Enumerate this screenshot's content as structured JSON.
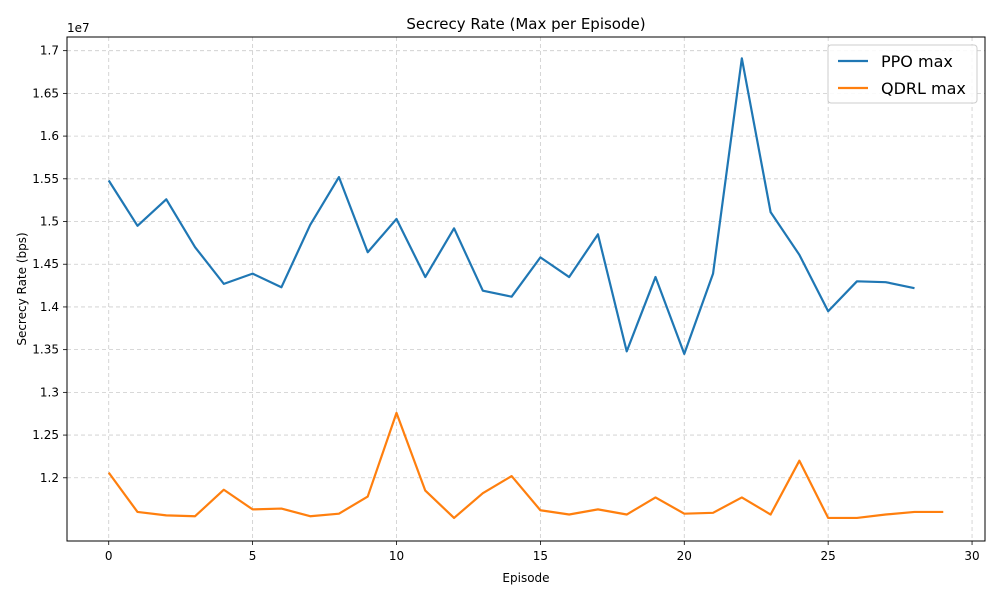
{
  "chart_data": {
    "type": "line",
    "title": "Secrecy Rate (Max per Episode)",
    "xlabel": "Episode",
    "ylabel": "Secrecy Rate (bps)",
    "y_offset_label": "1e7",
    "xlim": [
      -1.45,
      30.45
    ],
    "ylim": [
      11260000,
      17160000
    ],
    "x_ticks": [
      0,
      5,
      10,
      15,
      20,
      25,
      30
    ],
    "y_ticks": [
      12000000,
      12500000,
      13000000,
      13500000,
      14000000,
      14500000,
      15000000,
      15500000,
      16000000,
      16500000,
      17000000
    ],
    "y_tick_labels": [
      "1.2",
      "1.25",
      "1.3",
      "1.35",
      "1.4",
      "1.45",
      "1.5",
      "1.55",
      "1.6",
      "1.65",
      "1.7"
    ],
    "grid": true,
    "legend_position": "top-right",
    "series": [
      {
        "name": "PPO max",
        "color": "#1f77b4",
        "x": [
          0,
          1,
          2,
          3,
          4,
          5,
          6,
          7,
          8,
          9,
          10,
          11,
          12,
          13,
          14,
          15,
          16,
          17,
          18,
          19,
          20,
          21,
          22,
          23,
          24,
          25,
          26,
          27,
          28
        ],
        "values": [
          15480000,
          14950000,
          15260000,
          14700000,
          14270000,
          14390000,
          14230000,
          14960000,
          15520000,
          14640000,
          15030000,
          14350000,
          14920000,
          14190000,
          14120000,
          14580000,
          14350000,
          14850000,
          13480000,
          14350000,
          13450000,
          14390000,
          16910000,
          15110000,
          14610000,
          13950000,
          14300000,
          14290000,
          14220000
        ]
      },
      {
        "name": "QDRL max",
        "color": "#ff7f0e",
        "x": [
          0,
          1,
          2,
          3,
          4,
          5,
          6,
          7,
          8,
          9,
          10,
          11,
          12,
          13,
          14,
          15,
          16,
          17,
          18,
          19,
          20,
          21,
          22,
          23,
          24,
          25,
          26,
          27,
          28,
          29
        ],
        "values": [
          12060000,
          11600000,
          11560000,
          11550000,
          11860000,
          11630000,
          11640000,
          11550000,
          11580000,
          11780000,
          12760000,
          11850000,
          11530000,
          11820000,
          12020000,
          11620000,
          11570000,
          11630000,
          11570000,
          11770000,
          11580000,
          11590000,
          11770000,
          11570000,
          12200000,
          11530000,
          11530000,
          11570000,
          11600000,
          11600000
        ]
      }
    ]
  }
}
